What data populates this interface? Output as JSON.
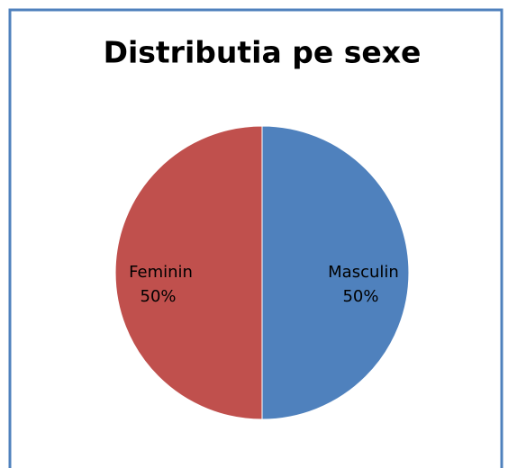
{
  "chart_data": {
    "type": "pie",
    "title": "Distributia pe sexe",
    "categories": [
      "Masculin",
      "Feminin"
    ],
    "values": [
      50,
      50
    ],
    "value_labels": [
      "50%",
      "50%"
    ],
    "colors": [
      "#4f81bd",
      "#c0504d"
    ]
  }
}
